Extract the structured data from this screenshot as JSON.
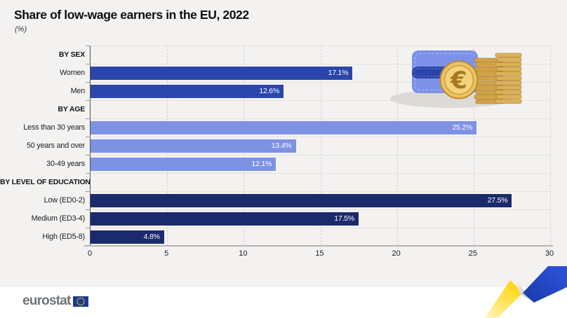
{
  "header": {
    "title": "Share of low-wage earners in the EU, 2022",
    "subtitle": "(%)"
  },
  "chart_data": {
    "type": "bar",
    "orientation": "horizontal",
    "unit": "%",
    "xlim": [
      0,
      30
    ],
    "x_ticks": [
      "0",
      "5",
      "10",
      "15",
      "20",
      "25",
      "30"
    ],
    "grid": "vertical-dashed",
    "value_labels_inside_bars": true,
    "groups": [
      {
        "header": "BY SEX",
        "color": "#2b46ab",
        "items": [
          {
            "label": "Women",
            "value": 17.1,
            "value_label": "17.1%"
          },
          {
            "label": "Men",
            "value": 12.6,
            "value_label": "12.6%"
          }
        ]
      },
      {
        "header": "BY AGE",
        "color": "#7d92e3",
        "items": [
          {
            "label": "Less than 30 years",
            "value": 25.2,
            "value_label": "25.2%"
          },
          {
            "label": "50 years and over",
            "value": 13.4,
            "value_label": "13.4%"
          },
          {
            "label": "30-49 years",
            "value": 12.1,
            "value_label": "12.1%"
          }
        ]
      },
      {
        "header": "BY LEVEL OF EDUCATION",
        "color": "#1b2a6b",
        "items": [
          {
            "label": "Low (ED0-2)",
            "value": 27.5,
            "value_label": "27.5%"
          },
          {
            "label": "Medium (ED3-4)",
            "value": 17.5,
            "value_label": "17.5%"
          },
          {
            "label": "High (ED5-8)",
            "value": 4.8,
            "value_label": "4.8%"
          }
        ]
      }
    ]
  },
  "footer": {
    "logo_text": "eurostat"
  },
  "icons": {
    "illustration": "wallet-with-euro-coins-icon",
    "ribbon": "yellow-blue-ribbon-decoration",
    "flag": "eu-flag-icon"
  },
  "colors": {
    "background": "#f3f2f1",
    "footer_background": "#ffffff",
    "bar_sex": "#2b46ab",
    "bar_age": "#7d92e3",
    "bar_education": "#1b2a6b",
    "value_label_text": "#ffffff",
    "axis_line": "#b7b5b2",
    "ribbon_yellow": "#ffd617",
    "ribbon_blue": "#2545c4"
  }
}
